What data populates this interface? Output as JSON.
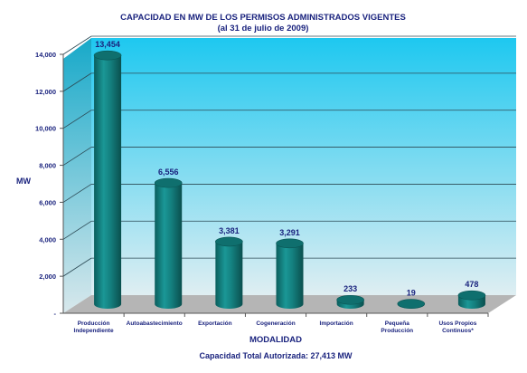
{
  "chart_data": {
    "type": "bar",
    "title": "CAPACIDAD EN MW DE LOS PERMISOS ADMINISTRADOS VIGENTES",
    "subtitle": "(al 31 de julio de 2009)",
    "ylabel": "MW",
    "xlabel": "MODALIDAD",
    "footer": "Capacidad Total Autorizada: 27,413 MW",
    "ylim": [
      0,
      14000
    ],
    "yticks": [
      {
        "value": 0,
        "label": "-"
      },
      {
        "value": 2000,
        "label": "2,000"
      },
      {
        "value": 4000,
        "label": "4,000"
      },
      {
        "value": 6000,
        "label": "6,000"
      },
      {
        "value": 8000,
        "label": "8,000"
      },
      {
        "value": 10000,
        "label": "10,000"
      },
      {
        "value": 12000,
        "label": "12,000"
      },
      {
        "value": 14000,
        "label": "14,000"
      }
    ],
    "categories": [
      [
        "Producción",
        "Independiente"
      ],
      [
        "Autoabastecimiento"
      ],
      [
        "Exportación"
      ],
      [
        "Cogeneración"
      ],
      [
        "Importación"
      ],
      [
        "Pequeña",
        "Producción"
      ],
      [
        "Usos Propios",
        "Continuos*"
      ]
    ],
    "values": [
      13454,
      6556,
      3381,
      3291,
      233,
      19,
      478
    ],
    "value_labels": [
      "13,454",
      "6,556",
      "3,381",
      "3,291",
      "233",
      "19",
      "478"
    ],
    "grid": true,
    "colors": {
      "bar": "#12807f",
      "bar_top": "#0f6f6e",
      "wall_top": "#1ec8f0",
      "wall_bottom": "#dfeef2",
      "floor": "#b5b5b5",
      "title": "#1a237e",
      "labels": "#1a237e"
    }
  }
}
